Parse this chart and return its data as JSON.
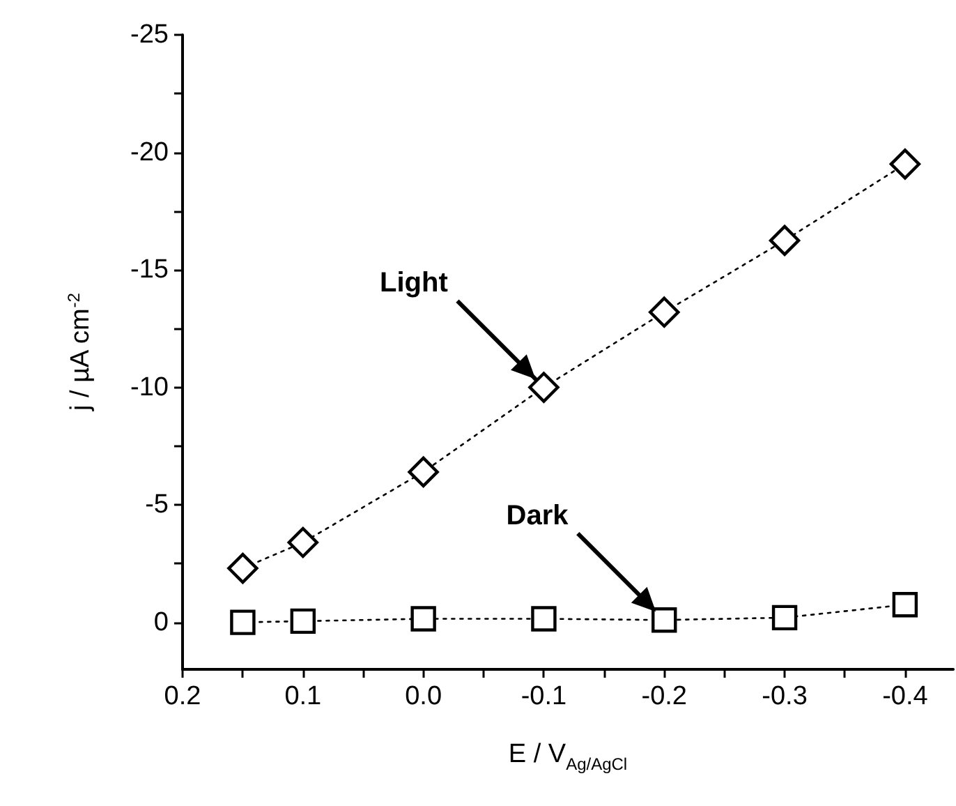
{
  "chart_data": {
    "type": "line",
    "xlabel": "E / V$_{Ag/AgCl}$",
    "ylabel": "j / µA cm$^{-2}$",
    "x": [
      0.15,
      0.1,
      0.0,
      -0.1,
      -0.2,
      -0.3,
      -0.4
    ],
    "series": [
      {
        "color": "#000000",
        "marker": "diamond",
        "values": [
          -2.3,
          -3.4,
          -6.4,
          -10.0,
          -13.2,
          -16.25,
          -19.5
        ]
      },
      {
        "color": "#000000",
        "marker": "square",
        "values": [
          0.0,
          -0.05,
          -0.15,
          -0.15,
          -0.1,
          -0.2,
          -0.75
        ]
      }
    ],
    "xlim": [
      0.2,
      -0.44
    ],
    "xticks": [
      0.2,
      {
        "value": 0.15,
        "label": null
      },
      0.1,
      {
        "value": 0.05,
        "label": null
      },
      {
        "value": 0,
        "label": "0.0"
      },
      {
        "value": -0.05,
        "label": null
      },
      -0.1,
      {
        "value": -0.15,
        "label": null
      },
      -0.2,
      {
        "value": -0.25,
        "label": null
      },
      -0.3,
      {
        "value": -0.35,
        "label": null
      },
      -0.4
    ],
    "ylim": [
      2,
      -25
    ],
    "yticks": [
      0,
      {
        "value": -2.5,
        "label": null
      },
      -5,
      {
        "value": -7.5,
        "label": null
      },
      -10,
      {
        "value": -12.5,
        "label": null
      },
      -15,
      {
        "value": -17.5,
        "label": null
      },
      -20,
      {
        "value": -22.5,
        "label": null
      },
      -25
    ],
    "line_style": "dotted",
    "grid": false,
    "annotations": [
      {
        "text": "Light",
        "x": -0.1,
        "y": -10.0
      },
      {
        "text": "Dark",
        "x": -0.2,
        "y": -0.1
      }
    ]
  }
}
